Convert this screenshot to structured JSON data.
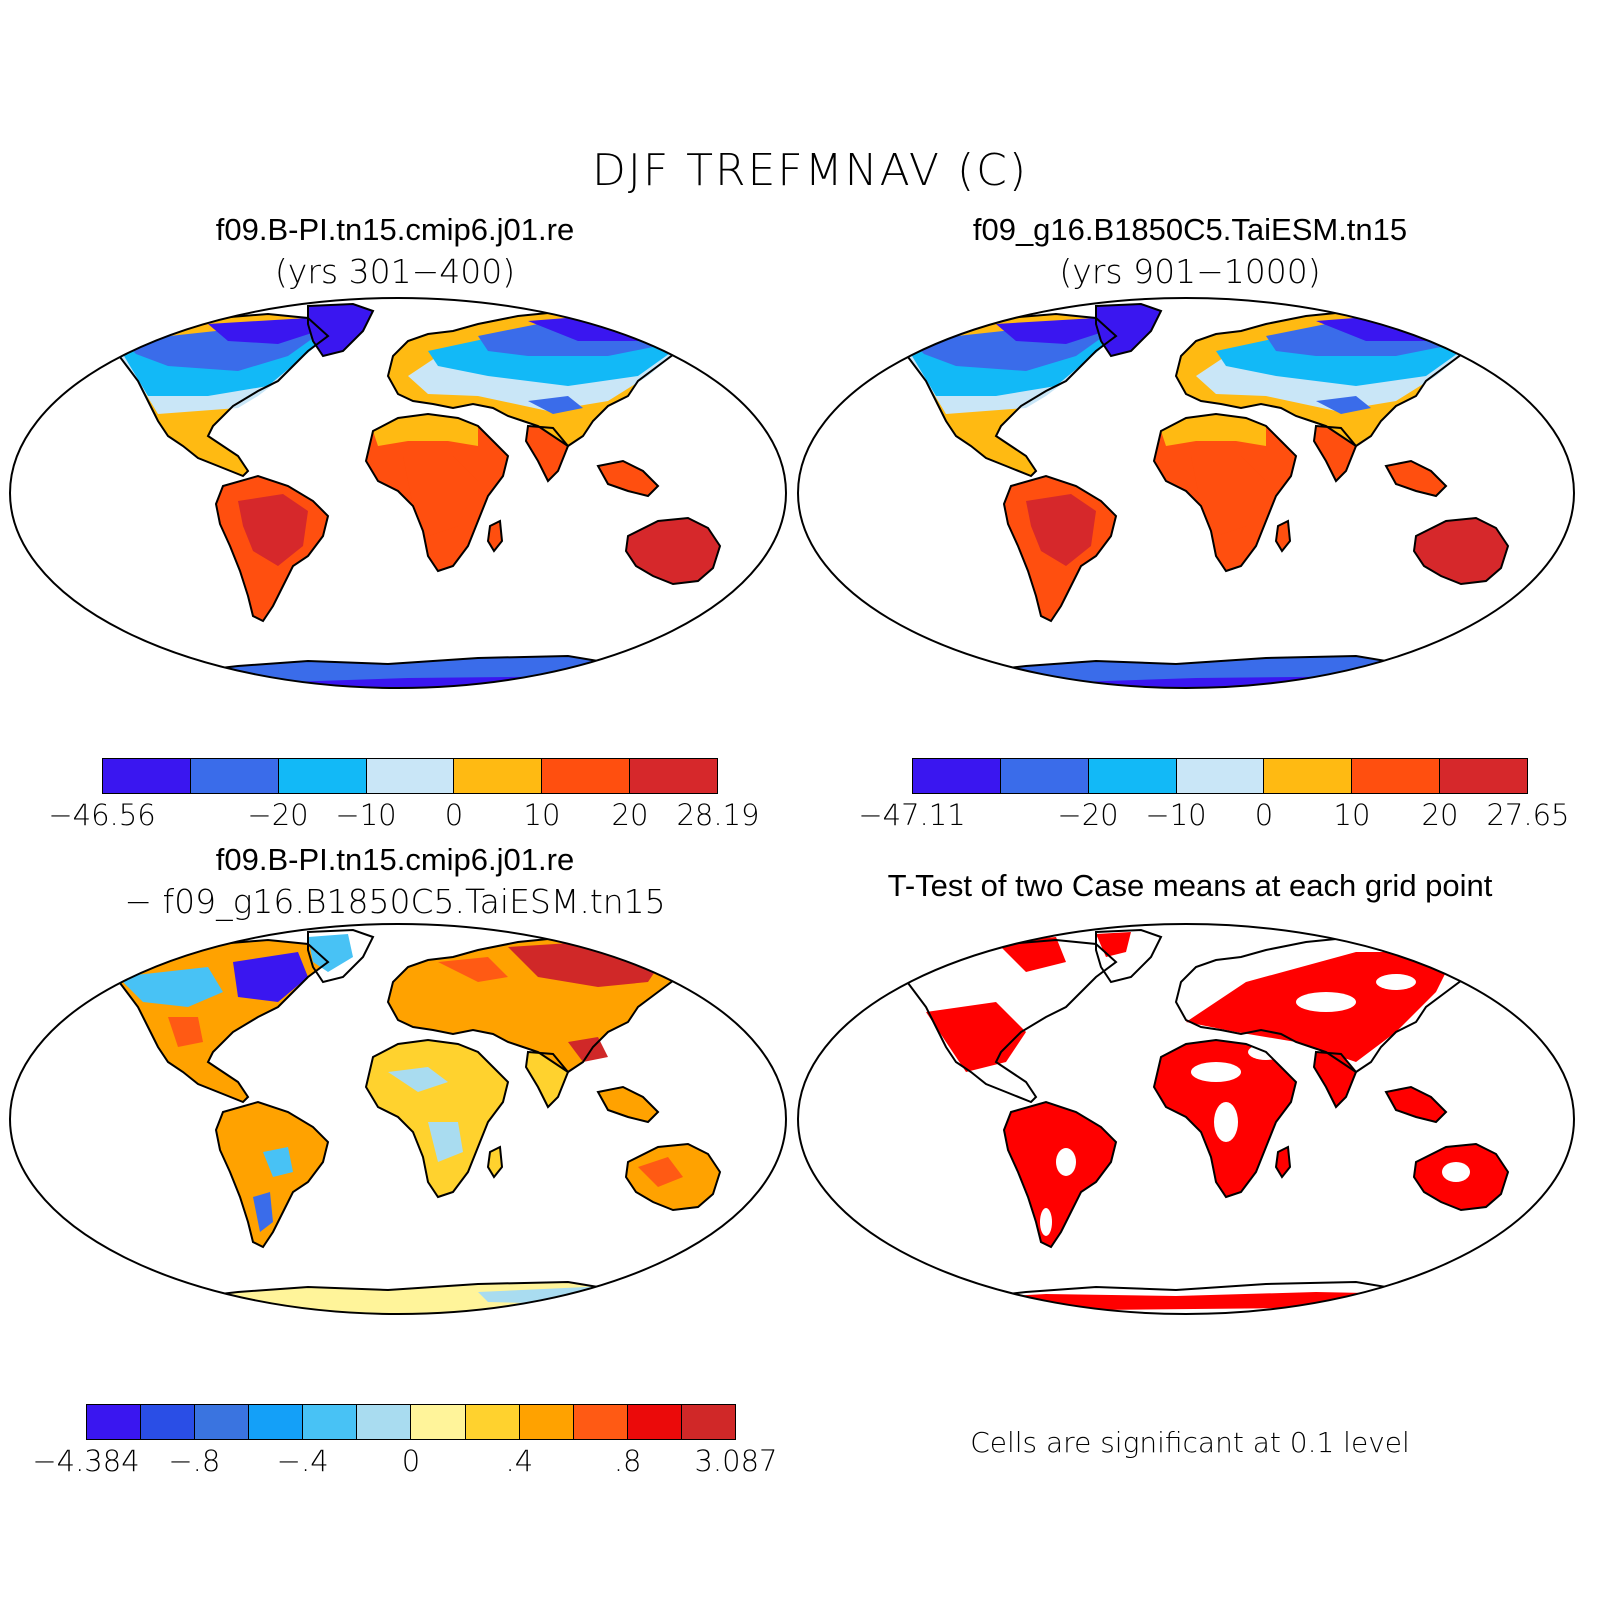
{
  "title": "DJF TREFMNAV (C)",
  "panels": [
    {
      "title": "f09.B-PI.tn15.cmip6.j01.re",
      "subtitle": "(yrs 301−400)",
      "colorbar": {
        "colors": [
          "#3a16f0",
          "#3a6cea",
          "#12b9f7",
          "#c9e6f7",
          "#ffba12",
          "#ff4f0f",
          "#d6282b"
        ],
        "labels": [
          "−46.56",
          "−20",
          "−10",
          "0",
          "10",
          "20",
          "28.19"
        ]
      }
    },
    {
      "title": "f09_g16.B1850C5.TaiESM.tn15",
      "subtitle": "(yrs 901−1000)",
      "colorbar": {
        "colors": [
          "#3a16f0",
          "#3a6cea",
          "#12b9f7",
          "#c9e6f7",
          "#ffba12",
          "#ff4f0f",
          "#d6282b"
        ],
        "labels": [
          "−47.11",
          "−20",
          "−10",
          "0",
          "10",
          "20",
          "27.65"
        ]
      }
    },
    {
      "title": "f09.B-PI.tn15.cmip6.j01.re",
      "subtitle": "− f09_g16.B1850C5.TaiESM.tn15",
      "colorbar": {
        "colors": [
          "#3a16f0",
          "#2a4ee6",
          "#3a74e0",
          "#14a0f8",
          "#48c2f5",
          "#a9dcf0",
          "#fff49a",
          "#ffd22e",
          "#ffa200",
          "#ff5a14",
          "#eb0a0a",
          "#d02828"
        ],
        "labels": [
          "−4.384",
          "−.8",
          "−.4",
          "0",
          ".4",
          ".8",
          "3.087"
        ]
      }
    },
    {
      "title": "T-Test of two Case means at each grid point",
      "note": "Cells are significant at 0.1 level"
    }
  ]
}
